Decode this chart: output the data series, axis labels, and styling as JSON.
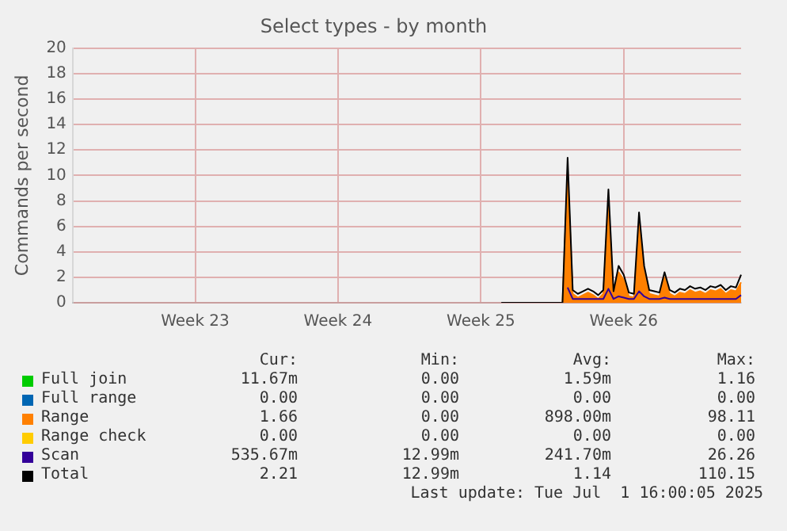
{
  "chart_data": {
    "type": "line",
    "title": "Select types - by month",
    "ylabel": "Commands per second",
    "categories": [
      null,
      null,
      null,
      null,
      null,
      null,
      null,
      null,
      null,
      null,
      null,
      null,
      null,
      null,
      null,
      null,
      null,
      null,
      null,
      null,
      null,
      null,
      null,
      null,
      "Week 23",
      null,
      null,
      null,
      null,
      null,
      null,
      null,
      null,
      null,
      null,
      null,
      null,
      null,
      null,
      null,
      null,
      null,
      null,
      null,
      null,
      null,
      null,
      null,
      null,
      null,
      null,
      null,
      "Week 24",
      null,
      null,
      null,
      null,
      null,
      null,
      null,
      null,
      null,
      null,
      null,
      null,
      null,
      null,
      null,
      null,
      null,
      null,
      null,
      null,
      null,
      null,
      null,
      null,
      null,
      null,
      null,
      "Week 25",
      null,
      null,
      null,
      null,
      null,
      null,
      null,
      null,
      null,
      null,
      null,
      null,
      null,
      null,
      null,
      null,
      null,
      null,
      null,
      null,
      null,
      null,
      null,
      null,
      null,
      null,
      null,
      "Week 26",
      null,
      null,
      null,
      null,
      null,
      null,
      null,
      null,
      null,
      null,
      null,
      null,
      null,
      null,
      null,
      null,
      null,
      null,
      null,
      null,
      null,
      null,
      null
    ],
    "ylim": [
      0,
      20
    ],
    "yticks": [
      0,
      2,
      4,
      6,
      8,
      10,
      12,
      14,
      16,
      18,
      20
    ],
    "grid": true,
    "legend": "bottom",
    "marker": "none",
    "series": [
      {
        "name": "Full join",
        "color": "#00cc00",
        "type": "line",
        "values": [
          null,
          null,
          null,
          null,
          null,
          null,
          null,
          null,
          null,
          null,
          null,
          null,
          null,
          null,
          null,
          null,
          null,
          null,
          null,
          null,
          null,
          null,
          null,
          null,
          null,
          null,
          null,
          null,
          null,
          null,
          null,
          null,
          null,
          null,
          null,
          null,
          null,
          null,
          null,
          null,
          null,
          null,
          null,
          null,
          null,
          null,
          null,
          null,
          null,
          null,
          null,
          null,
          null,
          null,
          null,
          null,
          null,
          null,
          null,
          null,
          null,
          null,
          null,
          null,
          null,
          null,
          null,
          null,
          null,
          null,
          null,
          null,
          null,
          null,
          null,
          null,
          null,
          null,
          null,
          null,
          null,
          null,
          null,
          null,
          null,
          null,
          null,
          null,
          null,
          null,
          null,
          null,
          null,
          null,
          null,
          null,
          null,
          null,
          null,
          null,
          null,
          null,
          null,
          null,
          null,
          null,
          null,
          null,
          null,
          null,
          null,
          null,
          null,
          null,
          null,
          null,
          null,
          null,
          null,
          null,
          null,
          null,
          null,
          null,
          null,
          null,
          null,
          null,
          null,
          null,
          null,
          null
        ]
      },
      {
        "name": "Full range",
        "color": "#0066b3",
        "type": "line",
        "values": [
          null,
          null,
          null,
          null,
          null,
          null,
          null,
          null,
          null,
          null,
          null,
          null,
          null,
          null,
          null,
          null,
          null,
          null,
          null,
          null,
          null,
          null,
          null,
          null,
          null,
          null,
          null,
          null,
          null,
          null,
          null,
          null,
          null,
          null,
          null,
          null,
          null,
          null,
          null,
          null,
          null,
          null,
          null,
          null,
          null,
          null,
          null,
          null,
          null,
          null,
          null,
          null,
          null,
          null,
          null,
          null,
          null,
          null,
          null,
          null,
          null,
          null,
          null,
          null,
          null,
          null,
          null,
          null,
          null,
          null,
          null,
          null,
          null,
          null,
          null,
          null,
          null,
          null,
          null,
          null,
          null,
          null,
          null,
          null,
          null,
          null,
          null,
          null,
          null,
          null,
          null,
          null,
          null,
          null,
          null,
          null,
          null,
          null,
          null,
          null,
          null,
          null,
          null,
          null,
          null,
          null,
          null,
          null,
          null,
          null,
          null,
          null,
          null,
          null,
          null,
          null,
          null,
          null,
          null,
          null,
          null,
          null,
          null,
          null,
          null,
          null,
          null,
          null,
          null,
          null,
          null,
          null
        ]
      },
      {
        "name": "Range",
        "color": "#ff8000",
        "type": "area",
        "values": [
          null,
          null,
          null,
          null,
          null,
          null,
          null,
          null,
          null,
          null,
          null,
          null,
          null,
          null,
          null,
          null,
          null,
          null,
          null,
          null,
          null,
          null,
          null,
          null,
          null,
          null,
          null,
          null,
          null,
          null,
          null,
          null,
          null,
          null,
          null,
          null,
          null,
          null,
          null,
          null,
          null,
          null,
          null,
          null,
          null,
          null,
          null,
          null,
          null,
          null,
          null,
          null,
          null,
          null,
          null,
          null,
          null,
          null,
          null,
          null,
          null,
          null,
          null,
          null,
          null,
          null,
          null,
          null,
          null,
          null,
          null,
          null,
          null,
          null,
          null,
          null,
          null,
          null,
          null,
          null,
          null,
          null,
          null,
          null,
          null,
          null,
          null,
          null,
          null,
          null,
          null,
          null,
          null,
          null,
          null,
          null,
          0,
          10.2,
          0.7,
          0.4,
          0.6,
          0.8,
          0.6,
          0.3,
          0.7,
          7.8,
          0.6,
          2.4,
          1.8,
          0.5,
          0.4,
          6.2,
          2.4,
          0.7,
          0.6,
          0.5,
          2.0,
          0.7,
          0.5,
          0.8,
          0.7,
          1.0,
          0.8,
          0.9,
          0.7,
          1.0,
          0.9,
          1.1,
          0.7,
          1.0,
          0.9,
          1.6
        ]
      },
      {
        "name": "Range check",
        "color": "#ffcc00",
        "type": "line",
        "values": [
          null,
          null,
          null,
          null,
          null,
          null,
          null,
          null,
          null,
          null,
          null,
          null,
          null,
          null,
          null,
          null,
          null,
          null,
          null,
          null,
          null,
          null,
          null,
          null,
          null,
          null,
          null,
          null,
          null,
          null,
          null,
          null,
          null,
          null,
          null,
          null,
          null,
          null,
          null,
          null,
          null,
          null,
          null,
          null,
          null,
          null,
          null,
          null,
          null,
          null,
          null,
          null,
          null,
          null,
          null,
          null,
          null,
          null,
          null,
          null,
          null,
          null,
          null,
          null,
          null,
          null,
          null,
          null,
          null,
          null,
          null,
          null,
          null,
          null,
          null,
          null,
          null,
          null,
          null,
          null,
          null,
          null,
          null,
          null,
          null,
          null,
          null,
          null,
          null,
          null,
          null,
          null,
          null,
          null,
          null,
          null,
          null,
          null,
          null,
          null,
          null,
          null,
          null,
          null,
          null,
          null,
          null,
          null,
          null,
          null,
          null,
          null,
          null,
          null,
          null,
          null,
          null,
          null,
          null,
          null,
          null,
          null,
          null,
          null,
          null,
          null,
          null,
          null,
          null,
          null,
          null,
          null
        ]
      },
      {
        "name": "Scan",
        "color": "#330099",
        "type": "line",
        "values": [
          null,
          null,
          null,
          null,
          null,
          null,
          null,
          null,
          null,
          null,
          null,
          null,
          null,
          null,
          null,
          null,
          null,
          null,
          null,
          null,
          null,
          null,
          null,
          null,
          null,
          null,
          null,
          null,
          null,
          null,
          null,
          null,
          null,
          null,
          null,
          null,
          null,
          null,
          null,
          null,
          null,
          null,
          null,
          null,
          null,
          null,
          null,
          null,
          null,
          null,
          null,
          null,
          null,
          null,
          null,
          null,
          null,
          null,
          null,
          null,
          null,
          null,
          null,
          null,
          null,
          null,
          null,
          null,
          null,
          null,
          null,
          null,
          null,
          null,
          null,
          null,
          null,
          null,
          null,
          null,
          null,
          null,
          null,
          null,
          null,
          null,
          null,
          null,
          null,
          null,
          null,
          null,
          null,
          null,
          null,
          null,
          null,
          1.2,
          0.3,
          0.3,
          0.3,
          0.3,
          0.3,
          0.3,
          0.3,
          1.1,
          0.3,
          0.5,
          0.4,
          0.3,
          0.3,
          0.9,
          0.5,
          0.3,
          0.3,
          0.3,
          0.4,
          0.3,
          0.3,
          0.3,
          0.3,
          0.3,
          0.3,
          0.3,
          0.3,
          0.3,
          0.3,
          0.3,
          0.3,
          0.3,
          0.3,
          0.6
        ]
      },
      {
        "name": "Total",
        "color": "#000000",
        "type": "line",
        "values": [
          null,
          null,
          null,
          null,
          null,
          null,
          null,
          null,
          null,
          null,
          null,
          null,
          null,
          null,
          null,
          null,
          null,
          null,
          null,
          null,
          null,
          null,
          null,
          null,
          null,
          null,
          null,
          null,
          null,
          null,
          null,
          null,
          null,
          null,
          null,
          null,
          null,
          null,
          null,
          null,
          null,
          null,
          null,
          null,
          null,
          null,
          null,
          null,
          null,
          null,
          null,
          null,
          null,
          null,
          null,
          null,
          null,
          null,
          null,
          null,
          null,
          null,
          null,
          null,
          null,
          null,
          null,
          null,
          null,
          null,
          null,
          null,
          null,
          null,
          null,
          null,
          null,
          null,
          null,
          null,
          null,
          null,
          null,
          null,
          0,
          0,
          0,
          0,
          0,
          0,
          0,
          0,
          0,
          0,
          0,
          0,
          0,
          11.4,
          1.0,
          0.7,
          0.9,
          1.1,
          0.9,
          0.6,
          1.0,
          8.9,
          0.9,
          2.9,
          2.2,
          0.8,
          0.7,
          7.1,
          2.9,
          1.0,
          0.9,
          0.8,
          2.4,
          1.0,
          0.8,
          1.1,
          1.0,
          1.3,
          1.1,
          1.2,
          1.0,
          1.3,
          1.2,
          1.4,
          1.0,
          1.3,
          1.2,
          2.2
        ]
      }
    ],
    "annotations": [
      "Cur:",
      "Min:",
      "Avg:",
      "Max:",
      "11.67m",
      "0.00",
      "1.59m",
      "1.16",
      "0.00",
      "0.00",
      "0.00",
      "0.00",
      "1.66",
      "0.00",
      "898.00m",
      "98.11",
      "0.00",
      "0.00",
      "0.00",
      "0.00",
      "535.67m",
      "12.99m",
      "241.70m",
      "26.26",
      "2.21",
      "12.99m",
      "1.14",
      "110.15",
      "Last update: Tue Jul  1 16:00:05 2025"
    ]
  }
}
